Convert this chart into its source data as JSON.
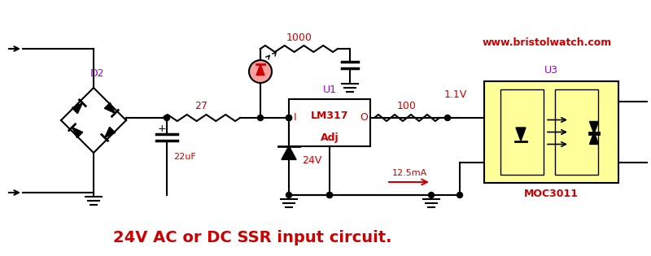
{
  "bg_color": "#ffffff",
  "wire_color": "#000000",
  "red_color": "#cc0000",
  "purple_color": "#9900cc",
  "yellow_color": "#ffff99",
  "title": "24V AC or DC SSR input circuit.",
  "website": "www.bristolwatch.com",
  "lm317_label": "LM317",
  "lm317_adj": "Adj",
  "lm317_I": "I",
  "lm317_O": "O",
  "r27_label": "27",
  "r1000_label": "1000",
  "r100_label": "100",
  "d2_label": "D2",
  "u1_label": "U1",
  "u3_label": "U3",
  "cap_label": "22uF",
  "zener_label": "24V",
  "voltage_label": "1.1V",
  "current_label": "12.5mA",
  "moc_label": "MOC3011"
}
